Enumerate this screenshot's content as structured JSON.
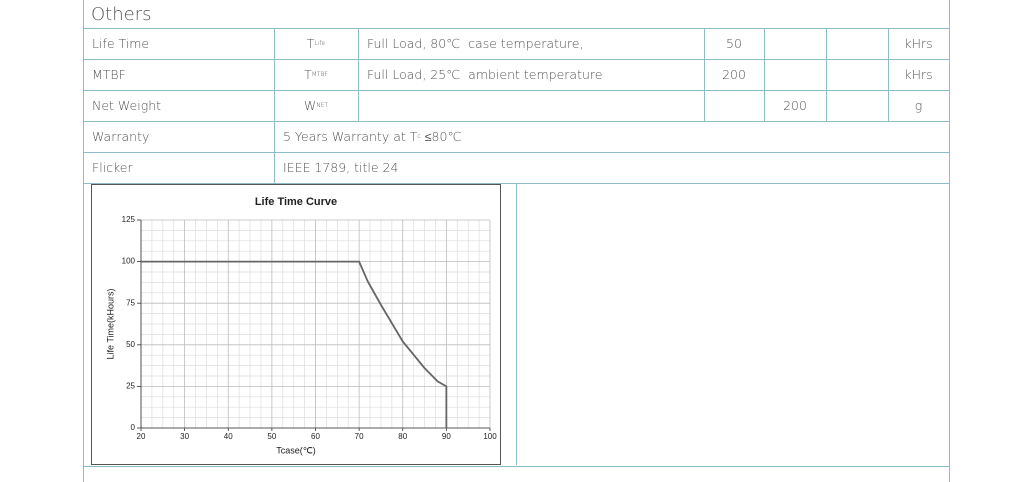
{
  "table": {
    "title": "Others",
    "rows": [
      [
        "Life Time",
        {
          "text": "T",
          "sub": "Life"
        },
        "Full Load, 80℃  case temperature,",
        50,
        null,
        null,
        "kHrs"
      ],
      [
        "MTBF",
        {
          "text": "T",
          "sub": "MTBF"
        },
        "Full Load, 25℃  ambient temperature",
        200,
        null,
        null,
        "kHrs"
      ],
      [
        "Net Weight",
        {
          "text": "W",
          "sub": "NET"
        },
        null,
        null,
        200,
        null,
        "g"
      ],
      [
        "Warranty",
        {
          "text": "5 Years Warranty at T",
          "sub": "c",
          "after": " ≤80℃"
        }
      ],
      [
        "Flicker",
        "IEEE 1789, title 24"
      ]
    ]
  },
  "chart_data": {
    "type": "line",
    "title": "Life Time Curve",
    "x_label": "Tcase(℃)",
    "y_label": "Life Time(kHours)",
    "x": [
      20,
      70,
      72,
      75,
      80,
      85,
      88,
      90,
      90
    ],
    "values": [
      100,
      100,
      88,
      74,
      52,
      36,
      28,
      25,
      0
    ],
    "color": "#666666",
    "xlim": [
      20,
      100
    ],
    "xticks": [
      20,
      30,
      40,
      50,
      60,
      70,
      80,
      90,
      100
    ],
    "ylim": [
      0,
      125
    ],
    "yticks": [
      0,
      25,
      50,
      75,
      100,
      125
    ],
    "grid": true
  }
}
